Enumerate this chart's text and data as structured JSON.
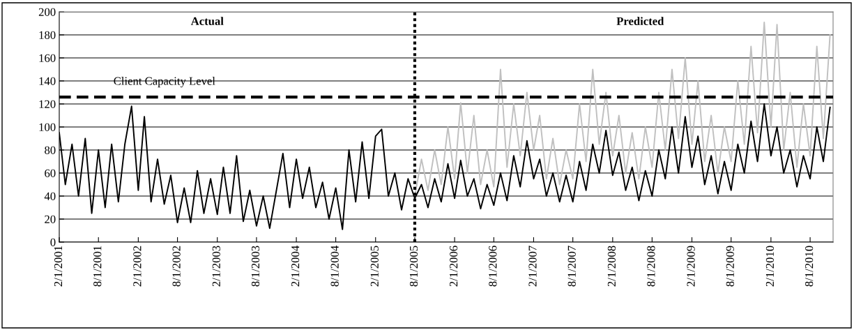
{
  "chart_data": {
    "type": "line",
    "annotations": [
      "Actual",
      "Predicted"
    ],
    "x": [
      "2001-02-01",
      "2001-03-01",
      "2001-04-01",
      "2001-05-01",
      "2001-06-01",
      "2001-07-01",
      "2001-08-01",
      "2001-09-01",
      "2001-10-01",
      "2001-11-01",
      "2001-12-01",
      "2002-01-01",
      "2002-02-01",
      "2002-03-01",
      "2002-04-01",
      "2002-05-01",
      "2002-06-01",
      "2002-07-01",
      "2002-08-01",
      "2002-09-01",
      "2002-10-01",
      "2002-11-01",
      "2002-12-01",
      "2003-01-01",
      "2003-02-01",
      "2003-03-01",
      "2003-04-01",
      "2003-05-01",
      "2003-06-01",
      "2003-07-01",
      "2003-08-01",
      "2003-09-01",
      "2003-10-01",
      "2003-11-01",
      "2003-12-01",
      "2004-01-01",
      "2004-02-01",
      "2004-03-01",
      "2004-04-01",
      "2004-05-01",
      "2004-06-01",
      "2004-07-01",
      "2004-08-01",
      "2004-09-01",
      "2004-10-01",
      "2004-11-01",
      "2004-12-01",
      "2005-01-01",
      "2005-02-01",
      "2005-03-01",
      "2005-04-01",
      "2005-05-01",
      "2005-06-01",
      "2005-07-01",
      "2005-08-01",
      "2005-09-01",
      "2005-10-01",
      "2005-11-01",
      "2005-12-01",
      "2006-01-01",
      "2006-02-01",
      "2006-03-01",
      "2006-04-01",
      "2006-05-01",
      "2006-06-01",
      "2006-07-01",
      "2006-08-01",
      "2006-09-01",
      "2006-10-01",
      "2006-11-01",
      "2006-12-01",
      "2007-01-01",
      "2007-02-01",
      "2007-03-01",
      "2007-04-01",
      "2007-05-01",
      "2007-06-01",
      "2007-07-01",
      "2007-08-01",
      "2007-09-01",
      "2007-10-01",
      "2007-11-01",
      "2007-12-01",
      "2008-01-01",
      "2008-02-01",
      "2008-03-01",
      "2008-04-01",
      "2008-05-01",
      "2008-06-01",
      "2008-07-01",
      "2008-08-01",
      "2008-09-01",
      "2008-10-01",
      "2008-11-01",
      "2008-12-01",
      "2009-01-01",
      "2009-02-01",
      "2009-03-01",
      "2009-04-01",
      "2009-05-01",
      "2009-06-01",
      "2009-07-01",
      "2009-08-01",
      "2009-09-01",
      "2009-10-01",
      "2009-11-01",
      "2009-12-01",
      "2010-01-01",
      "2010-02-01",
      "2010-03-01",
      "2010-04-01",
      "2010-05-01",
      "2010-06-01",
      "2010-07-01",
      "2010-08-01",
      "2010-09-01",
      "2010-10-01",
      "2010-11-01"
    ],
    "series": [
      {
        "color": "#c0c0c0",
        "x": [
          "2005-08-01",
          "2005-09-01",
          "2005-10-01",
          "2005-11-01",
          "2005-12-01",
          "2006-01-01",
          "2006-02-01",
          "2006-03-01",
          "2006-04-01",
          "2006-05-01",
          "2006-06-01",
          "2006-07-01",
          "2006-08-01",
          "2006-09-01",
          "2006-10-01",
          "2006-11-01",
          "2006-12-01",
          "2007-01-01",
          "2007-02-01",
          "2007-03-01",
          "2007-04-01",
          "2007-05-01",
          "2007-06-01",
          "2007-07-01",
          "2007-08-01",
          "2007-09-01",
          "2007-10-01",
          "2007-11-01",
          "2007-12-01",
          "2008-01-01",
          "2008-02-01",
          "2008-03-01",
          "2008-04-01",
          "2008-05-01",
          "2008-06-01",
          "2008-07-01",
          "2008-08-01",
          "2008-09-01",
          "2008-10-01",
          "2008-11-01",
          "2008-12-01",
          "2009-01-01",
          "2009-02-01",
          "2009-03-01",
          "2009-04-01",
          "2009-05-01",
          "2009-06-01",
          "2009-07-01",
          "2009-08-01",
          "2009-09-01",
          "2009-10-01",
          "2009-11-01",
          "2009-12-01",
          "2010-01-01",
          "2010-02-01",
          "2010-03-01",
          "2010-04-01",
          "2010-05-01",
          "2010-06-01",
          "2010-07-01",
          "2010-08-01",
          "2010-09-01",
          "2010-10-01",
          "2010-11-01"
        ],
        "values": [
          40,
          72,
          45,
          80,
          50,
          100,
          55,
          121,
          60,
          110,
          50,
          80,
          48,
          150,
          65,
          120,
          75,
          130,
          80,
          110,
          55,
          90,
          50,
          80,
          55,
          120,
          70,
          150,
          85,
          130,
          75,
          110,
          60,
          95,
          55,
          100,
          65,
          130,
          80,
          150,
          90,
          160,
          85,
          140,
          70,
          110,
          60,
          100,
          70,
          140,
          85,
          170,
          95,
          191,
          100,
          189,
          80,
          130,
          65,
          120,
          75,
          170,
          90,
          180
        ]
      },
      {
        "color": "#000000",
        "values": [
          95,
          50,
          85,
          40,
          90,
          25,
          80,
          30,
          85,
          35,
          85,
          118,
          45,
          109,
          35,
          72,
          33,
          58,
          17,
          47,
          17,
          62,
          25,
          55,
          24,
          65,
          25,
          75,
          18,
          45,
          14,
          40,
          12,
          45,
          77,
          30,
          72,
          38,
          65,
          30,
          52,
          20,
          47,
          11,
          80,
          35,
          87,
          38,
          92,
          98,
          40,
          60,
          28,
          55,
          38,
          50,
          30,
          55,
          35,
          68,
          38,
          71,
          40,
          55,
          29,
          50,
          32,
          60,
          36,
          75,
          48,
          88,
          55,
          72,
          40,
          60,
          35,
          58,
          35,
          70,
          45,
          85,
          60,
          97,
          58,
          78,
          45,
          65,
          36,
          62,
          40,
          80,
          55,
          100,
          60,
          109,
          65,
          92,
          50,
          75,
          42,
          70,
          45,
          85,
          60,
          105,
          70,
          120,
          75,
          100,
          60,
          80,
          48,
          75,
          55,
          100,
          70,
          117
        ]
      }
    ],
    "xlim": [
      "2001-02-01",
      "2010-11-15"
    ],
    "xticks": [
      {
        "value": "2001-02-01",
        "label": "2/1/2001"
      },
      {
        "value": "2001-08-01",
        "label": "8/1/2001"
      },
      {
        "value": "2002-02-01",
        "label": "2/1/2002"
      },
      {
        "value": "2002-08-01",
        "label": "8/1/2002"
      },
      {
        "value": "2003-02-01",
        "label": "2/1/2003"
      },
      {
        "value": "2003-08-01",
        "label": "8/1/2003"
      },
      {
        "value": "2004-02-01",
        "label": "2/1/2004"
      },
      {
        "value": "2004-08-01",
        "label": "8/1/2004"
      },
      {
        "value": "2005-02-01",
        "label": "2/1/2005"
      },
      {
        "value": "2005-08-01",
        "label": "8/1/2005"
      },
      {
        "value": "2006-02-01",
        "label": "2/1/2006"
      },
      {
        "value": "2006-08-01",
        "label": "8/1/2006"
      },
      {
        "value": "2007-02-01",
        "label": "2/1/2007"
      },
      {
        "value": "2007-08-01",
        "label": "8/1/2007"
      },
      {
        "value": "2008-02-01",
        "label": "2/1/2008"
      },
      {
        "value": "2008-08-01",
        "label": "8/1/2008"
      },
      {
        "value": "2009-02-01",
        "label": "2/1/2009"
      },
      {
        "value": "2009-08-01",
        "label": "8/1/2009"
      },
      {
        "value": "2010-02-01",
        "label": "2/1/2010"
      },
      {
        "value": "2010-08-01",
        "label": "8/1/2010"
      }
    ],
    "ylim": [
      0,
      200
    ],
    "yticks": [
      0,
      20,
      40,
      60,
      80,
      100,
      120,
      140,
      160,
      180,
      200
    ],
    "grid": "y",
    "marker": "none",
    "line_style": "solid",
    "ref_lines": [
      {
        "axis": "y",
        "value": 126,
        "label": "Client Capacity Level",
        "color": "#000000",
        "line_style": "dashed"
      },
      {
        "axis": "x",
        "value": "2005-08-01",
        "color": "#000000",
        "line_style": "dotted"
      }
    ]
  }
}
